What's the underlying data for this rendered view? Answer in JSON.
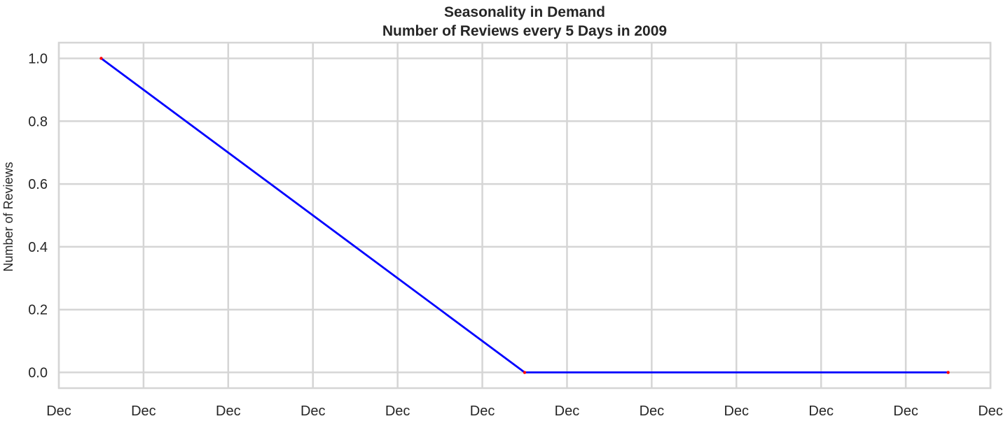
{
  "chart_data": {
    "type": "line",
    "title": "Seasonality in Demand",
    "subtitle": "Number of Reviews every 5 Days in 2009",
    "xlabel": "",
    "ylabel": "Number of Reviews",
    "x_tick_labels": [
      "Dec",
      "Dec",
      "Dec",
      "Dec",
      "Dec",
      "Dec",
      "Dec",
      "Dec",
      "Dec",
      "Dec",
      "Dec",
      "Dec"
    ],
    "y_tick_labels": [
      "0.0",
      "0.2",
      "0.4",
      "0.6",
      "0.8",
      "1.0"
    ],
    "yticks": [
      0.0,
      0.2,
      0.4,
      0.6,
      0.8,
      1.0
    ],
    "ylim": [
      -0.05,
      1.05
    ],
    "xlim": [
      "2009-11-30",
      "2009-12-11"
    ],
    "grid": true,
    "series": [
      {
        "x": [
          "2009-11-30T12:00",
          "2009-12-05T12:00",
          "2009-12-10T12:00"
        ],
        "values": [
          1,
          0,
          0
        ]
      }
    ],
    "colors": {
      "line": "#0000ff",
      "marker": "#ff0000",
      "grid": "#d5d5d5",
      "frame": "#d5d5d5",
      "text": "#262626"
    }
  }
}
